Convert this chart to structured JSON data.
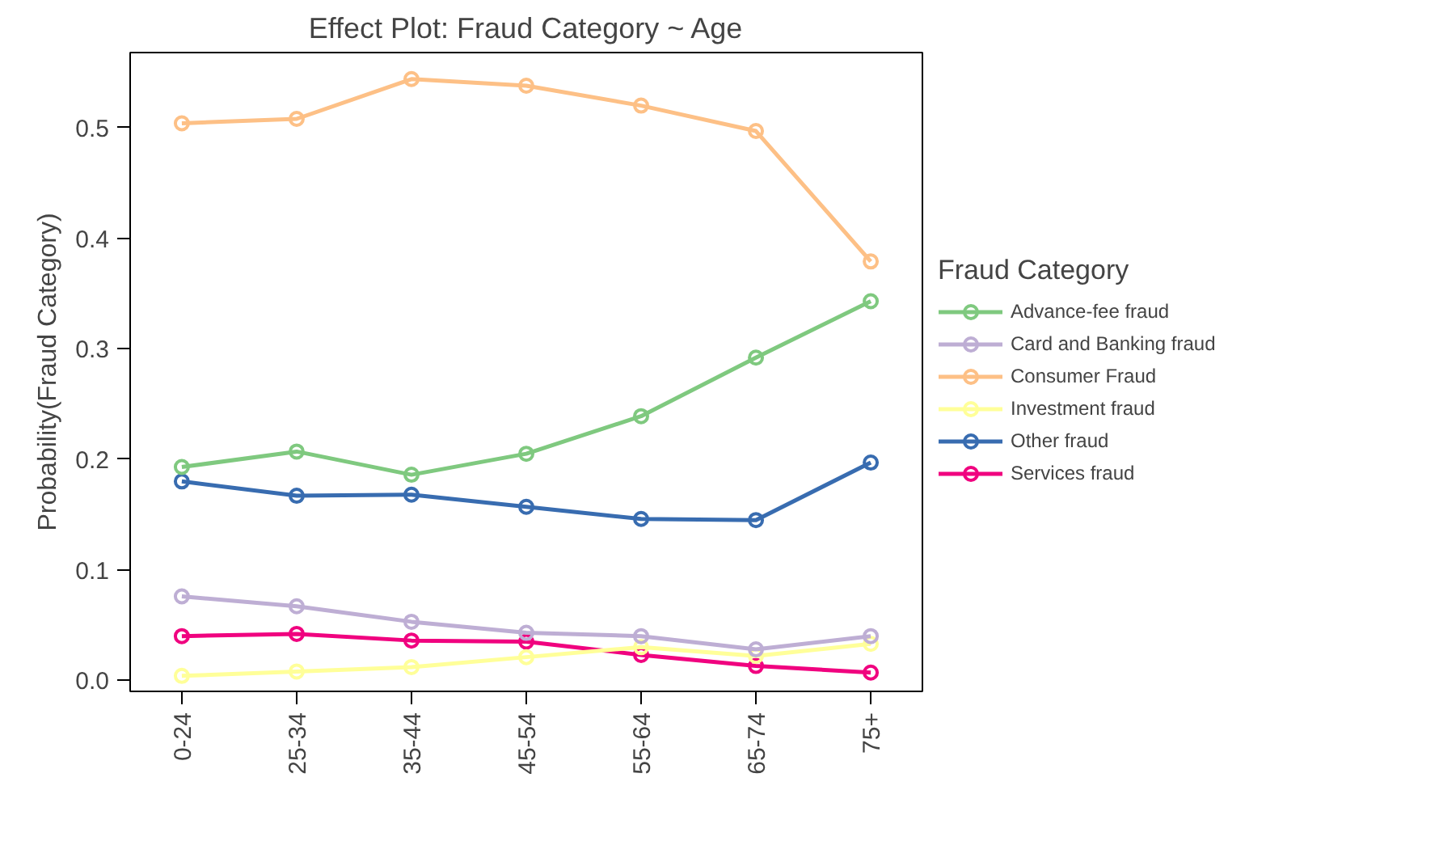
{
  "chart_data": {
    "type": "line",
    "title": "Effect Plot: Fraud Category ~ Age",
    "ylabel": "Probability(Fraud Category)",
    "legend_title": "Fraud Category",
    "categories": [
      "0-24",
      "25-34",
      "35-44",
      "45-54",
      "55-64",
      "65-74",
      "75+"
    ],
    "series": [
      {
        "name": "Advance-fee fraud",
        "color": "#7fc97f",
        "values": [
          0.193,
          0.207,
          0.186,
          0.205,
          0.239,
          0.292,
          0.343
        ]
      },
      {
        "name": "Card and Banking fraud",
        "color": "#beaed4",
        "values": [
          0.076,
          0.067,
          0.053,
          0.043,
          0.04,
          0.028,
          0.04
        ]
      },
      {
        "name": "Consumer Fraud",
        "color": "#fdc086",
        "values": [
          0.504,
          0.508,
          0.544,
          0.538,
          0.52,
          0.497,
          0.379
        ]
      },
      {
        "name": "Investment fraud",
        "color": "#ffff99",
        "values": [
          0.004,
          0.008,
          0.012,
          0.021,
          0.03,
          0.022,
          0.033
        ]
      },
      {
        "name": "Other fraud",
        "color": "#386cb0",
        "values": [
          0.18,
          0.167,
          0.168,
          0.157,
          0.146,
          0.145,
          0.197
        ]
      },
      {
        "name": "Services fraud",
        "color": "#f0027f",
        "values": [
          0.04,
          0.042,
          0.036,
          0.035,
          0.023,
          0.013,
          0.007
        ]
      }
    ],
    "ylim": [
      -0.01,
      0.568
    ],
    "yticks": [
      {
        "value": 0,
        "label": "0.0"
      },
      {
        "value": 0.1,
        "label": "0.1"
      },
      {
        "value": 0.2,
        "label": "0.2"
      },
      {
        "value": 0.3,
        "label": "0.3"
      },
      {
        "value": 0.4,
        "label": "0.4"
      },
      {
        "value": 0.5,
        "label": "0.5"
      }
    ],
    "grid": false,
    "legend": "right",
    "marker": "circle",
    "line_style": "solid"
  }
}
